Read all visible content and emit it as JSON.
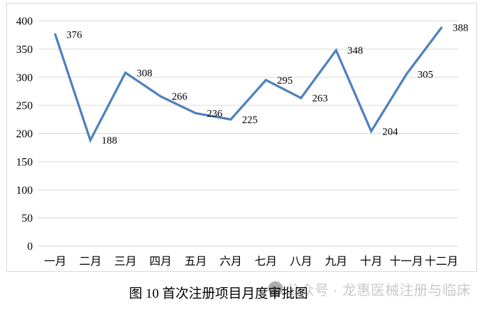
{
  "chart_data": {
    "type": "line",
    "title": "图 10 首次注册项目月度审批图",
    "categories": [
      "一月",
      "二月",
      "三月",
      "四月",
      "五月",
      "六月",
      "七月",
      "八月",
      "九月",
      "十月",
      "十一月",
      "十二月"
    ],
    "values": [
      376,
      188,
      308,
      266,
      236,
      225,
      295,
      263,
      348,
      204,
      305,
      388
    ],
    "xlabel": "",
    "ylabel": "",
    "ylim": [
      0,
      400
    ],
    "ytick_step": 50,
    "grid": true,
    "legend_position": "none",
    "line_color": "#4F81BD",
    "gridline_color": "#D9D9D9",
    "frame_border_color": "#D9D9D9",
    "label_color": "#000000"
  },
  "caption": {
    "text": "图 10 首次注册项目月度审批图"
  },
  "watermark": {
    "text": "公众号 · 龙惠医械注册与临床",
    "icon": "wechat-official-account-logo",
    "color": "#C9C9C9"
  }
}
